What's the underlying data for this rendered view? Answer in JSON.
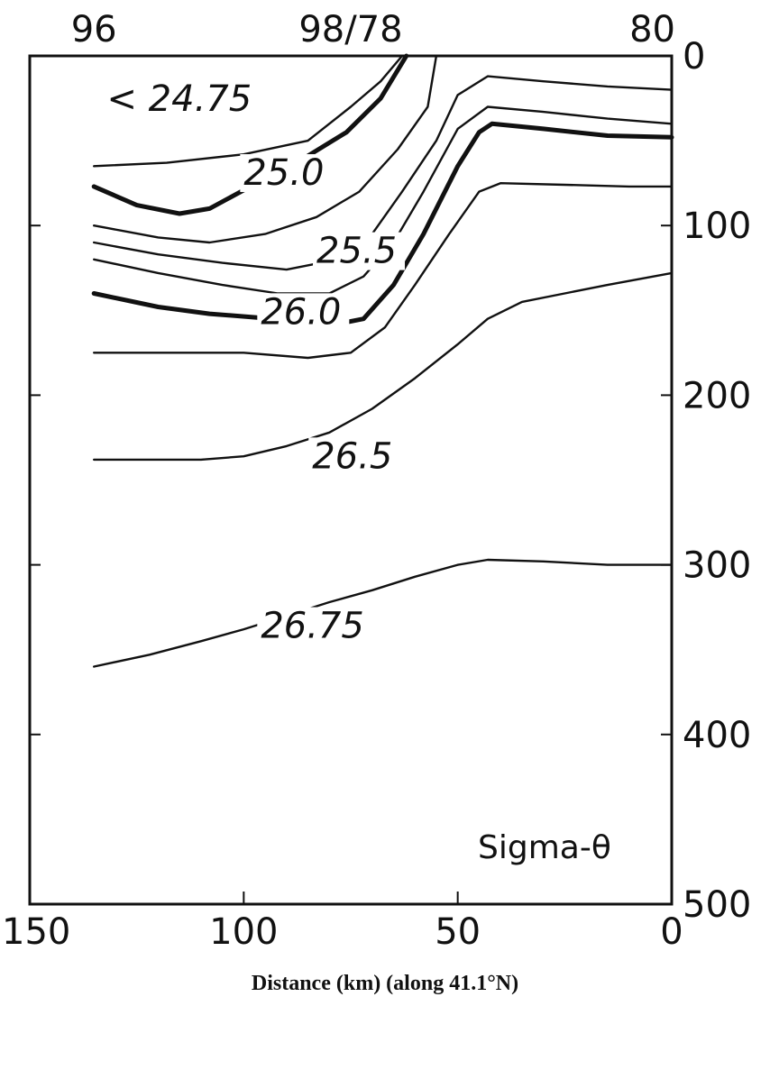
{
  "chart_data": {
    "type": "line",
    "subtype": "contour",
    "xlabel": "Distance (km) (along 41.1°N)",
    "ylabel": "",
    "plot_label": "Sigma-θ",
    "xlim": [
      150,
      0
    ],
    "ylim": [
      500,
      0
    ],
    "x_ticks": [
      {
        "value": 150,
        "label": "150"
      },
      {
        "value": 100,
        "label": "100"
      },
      {
        "value": 50,
        "label": "50"
      },
      {
        "value": 0,
        "label": "0"
      }
    ],
    "y_ticks": [
      {
        "value": 0,
        "label": "0"
      },
      {
        "value": 100,
        "label": "100"
      },
      {
        "value": 200,
        "label": "200"
      },
      {
        "value": 300,
        "label": "300"
      },
      {
        "value": 400,
        "label": "400"
      },
      {
        "value": 500,
        "label": "500"
      }
    ],
    "station_ticks": [
      {
        "value": 135,
        "label": "96"
      },
      {
        "value": 75,
        "label": "98/78"
      },
      {
        "value": 0,
        "label": "80"
      }
    ],
    "annotations": [
      {
        "text": "< 24.75",
        "x": 132,
        "y": 25
      }
    ],
    "series": [
      {
        "name": "25.0",
        "thick": false,
        "points": [
          [
            135,
            65
          ],
          [
            118,
            63
          ],
          [
            100,
            58
          ],
          [
            85,
            50
          ],
          [
            75,
            30
          ],
          [
            68,
            15
          ],
          [
            63,
            0
          ]
        ]
      },
      {
        "name": "25.0",
        "thick": true,
        "points": [
          [
            135,
            77
          ],
          [
            125,
            88
          ],
          [
            115,
            93
          ],
          [
            108,
            90
          ],
          [
            97,
            75
          ],
          [
            87,
            62
          ],
          [
            76,
            45
          ],
          [
            68,
            25
          ],
          [
            62,
            0
          ]
        ]
      },
      {
        "name": "25.0",
        "thick": false,
        "points": [
          [
            135,
            100
          ],
          [
            120,
            107
          ],
          [
            108,
            110
          ],
          [
            95,
            105
          ],
          [
            83,
            95
          ],
          [
            73,
            80
          ],
          [
            64,
            55
          ],
          [
            57,
            30
          ],
          [
            55,
            0
          ]
        ]
      },
      {
        "name": "25.5",
        "thick": false,
        "points": [
          [
            135,
            110
          ],
          [
            120,
            117
          ],
          [
            105,
            122
          ],
          [
            90,
            126
          ],
          [
            78,
            120
          ],
          [
            70,
            105
          ],
          [
            63,
            80
          ],
          [
            55,
            50
          ],
          [
            50,
            23
          ],
          [
            43,
            12
          ],
          [
            30,
            15
          ],
          [
            15,
            18
          ],
          [
            0,
            20
          ]
        ]
      },
      {
        "name": "25.5",
        "thick": false,
        "points": [
          [
            135,
            120
          ],
          [
            120,
            128
          ],
          [
            105,
            135
          ],
          [
            92,
            140
          ],
          [
            80,
            140
          ],
          [
            72,
            130
          ],
          [
            65,
            110
          ],
          [
            58,
            80
          ],
          [
            50,
            43
          ],
          [
            43,
            30
          ],
          [
            30,
            33
          ],
          [
            15,
            37
          ],
          [
            0,
            40
          ]
        ]
      },
      {
        "name": "26.0",
        "thick": true,
        "points": [
          [
            135,
            140
          ],
          [
            120,
            148
          ],
          [
            108,
            152
          ],
          [
            93,
            155
          ],
          [
            82,
            160
          ],
          [
            72,
            155
          ],
          [
            65,
            135
          ],
          [
            58,
            105
          ],
          [
            50,
            65
          ],
          [
            45,
            45
          ],
          [
            42,
            40
          ],
          [
            30,
            43
          ],
          [
            15,
            47
          ],
          [
            0,
            48
          ]
        ]
      },
      {
        "name": "26.0",
        "thick": false,
        "points": [
          [
            135,
            175
          ],
          [
            120,
            175
          ],
          [
            100,
            175
          ],
          [
            85,
            178
          ],
          [
            75,
            175
          ],
          [
            67,
            160
          ],
          [
            60,
            135
          ],
          [
            52,
            105
          ],
          [
            45,
            80
          ],
          [
            40,
            75
          ],
          [
            25,
            76
          ],
          [
            10,
            77
          ],
          [
            0,
            77
          ]
        ]
      },
      {
        "name": "26.5",
        "thick": false,
        "points": [
          [
            135,
            238
          ],
          [
            122,
            238
          ],
          [
            110,
            238
          ],
          [
            100,
            236
          ],
          [
            90,
            230
          ],
          [
            80,
            222
          ],
          [
            70,
            208
          ],
          [
            60,
            190
          ],
          [
            50,
            170
          ],
          [
            43,
            155
          ],
          [
            35,
            145
          ],
          [
            25,
            140
          ],
          [
            15,
            135
          ],
          [
            0,
            128
          ]
        ]
      },
      {
        "name": "26.75",
        "thick": false,
        "points": [
          [
            135,
            360
          ],
          [
            122,
            353
          ],
          [
            110,
            345
          ],
          [
            100,
            338
          ],
          [
            90,
            330
          ],
          [
            80,
            322
          ],
          [
            70,
            315
          ],
          [
            60,
            307
          ],
          [
            50,
            300
          ],
          [
            43,
            297
          ],
          [
            30,
            298
          ],
          [
            15,
            300
          ],
          [
            0,
            300
          ]
        ]
      }
    ],
    "contour_labels": [
      {
        "text": "25.0",
        "x": 100,
        "y": 76
      },
      {
        "text": "25.5",
        "x": 83,
        "y": 122
      },
      {
        "text": "26.0",
        "x": 96,
        "y": 158
      },
      {
        "text": "26.5",
        "x": 84,
        "y": 243
      },
      {
        "text": "26.75",
        "x": 96,
        "y": 343
      }
    ]
  }
}
